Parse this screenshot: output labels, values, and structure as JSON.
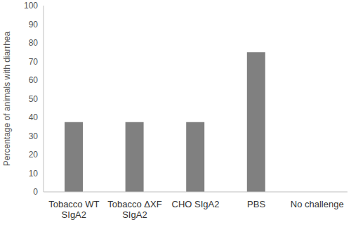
{
  "chart_data": {
    "type": "bar",
    "categories": [
      "Tobacco WT SIgA2",
      "Tobacco ΔXF SIgA2",
      "CHO SIgA2",
      "PBS",
      "No challenge"
    ],
    "values": [
      37.5,
      37.5,
      37.5,
      75,
      0
    ],
    "color": "#808080",
    "ylabel": "Percentage of animals with diarrhea",
    "ylim": [
      0,
      100
    ],
    "yticks": [
      0,
      10,
      20,
      30,
      40,
      50,
      60,
      70,
      80,
      90,
      100
    ],
    "grid": false
  }
}
